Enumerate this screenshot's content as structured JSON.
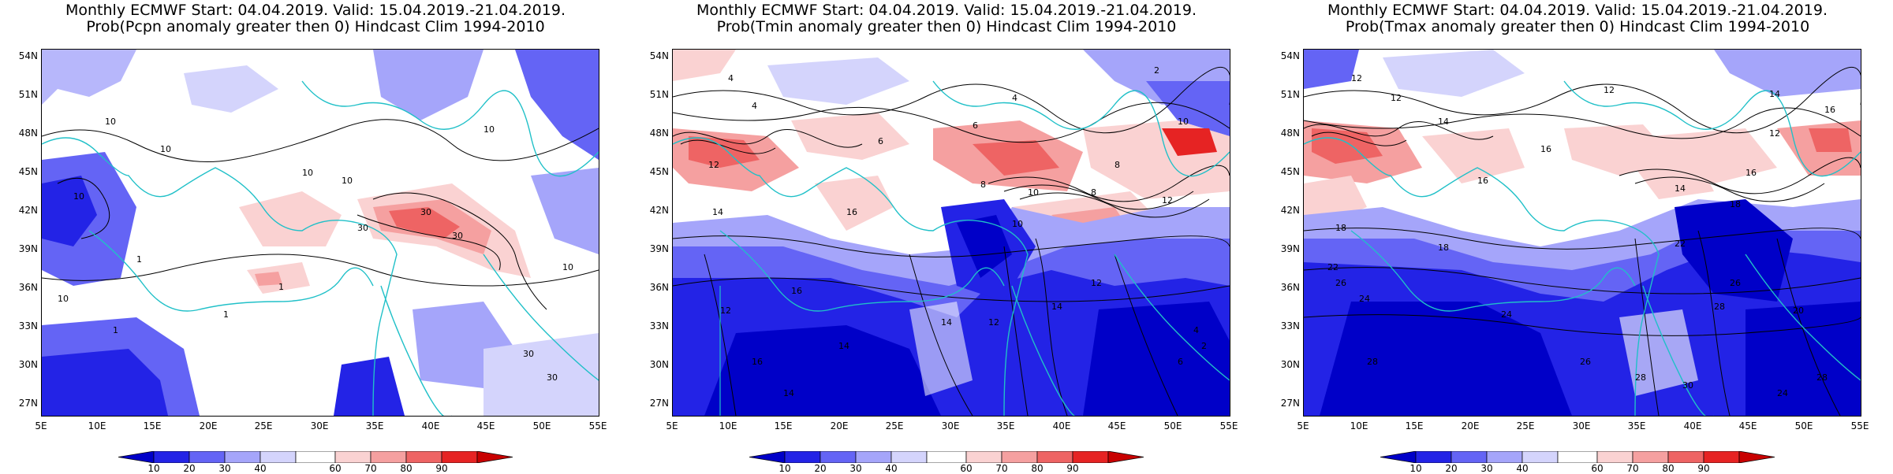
{
  "panels": [
    {
      "title_line1": "Monthly ECMWF Start: 04.04.2019. Valid: 15.04.2019.-21.04.2019.",
      "title_line2": "Prob(Pcpn anomaly greater then 0) Hindcast Clim 1994-2010",
      "contour_labels": [
        "10",
        "10",
        "10",
        "10",
        "10",
        "10",
        "10",
        "30",
        "30",
        "30",
        "30",
        "30",
        "1",
        "1",
        "1",
        "10",
        "1"
      ]
    },
    {
      "title_line1": "Monthly ECMWF Start: 04.04.2019. Valid: 15.04.2019.-21.04.2019.",
      "title_line2": "Prob(Tmin anomaly greater then 0) Hindcast Clim 1994-2010",
      "contour_labels": [
        "4",
        "4",
        "2",
        "4",
        "6",
        "8",
        "6",
        "8",
        "10",
        "10",
        "12",
        "12",
        "14",
        "14",
        "14",
        "16",
        "16",
        "12",
        "14",
        "16",
        "14",
        "12",
        "10",
        "8",
        "4",
        "6",
        "2",
        "12"
      ]
    },
    {
      "title_line1": "Monthly ECMWF Start: 04.04.2019. Valid: 15.04.2019.-21.04.2019.",
      "title_line2": "Prob(Tmax anomaly greater then 0) Hindcast Clim 1994-2010",
      "contour_labels": [
        "12",
        "12",
        "14",
        "16",
        "14",
        "12",
        "16",
        "18",
        "16",
        "18",
        "22",
        "24",
        "26",
        "28",
        "24",
        "20",
        "26",
        "28",
        "30",
        "28",
        "22",
        "26",
        "28",
        "24",
        "18",
        "16",
        "12",
        "14"
      ]
    }
  ],
  "lat_labels": [
    "54N",
    "51N",
    "48N",
    "45N",
    "42N",
    "39N",
    "36N",
    "33N",
    "30N",
    "27N"
  ],
  "lon_labels": [
    "5E",
    "10E",
    "15E",
    "20E",
    "25E",
    "30E",
    "35E",
    "40E",
    "45E",
    "50E",
    "55E"
  ],
  "colorbar": {
    "ticks": [
      "10",
      "20",
      "30",
      "40",
      "60",
      "70",
      "80",
      "90"
    ],
    "colors": [
      "#0000c8",
      "#2323e6",
      "#6464f5",
      "#a5a5fa",
      "#d4d4fc",
      "#ffffff",
      "#fad2d2",
      "#f5a0a0",
      "#ee6464",
      "#e62323",
      "#c80000"
    ]
  },
  "coastline_color": "#20c0c8"
}
